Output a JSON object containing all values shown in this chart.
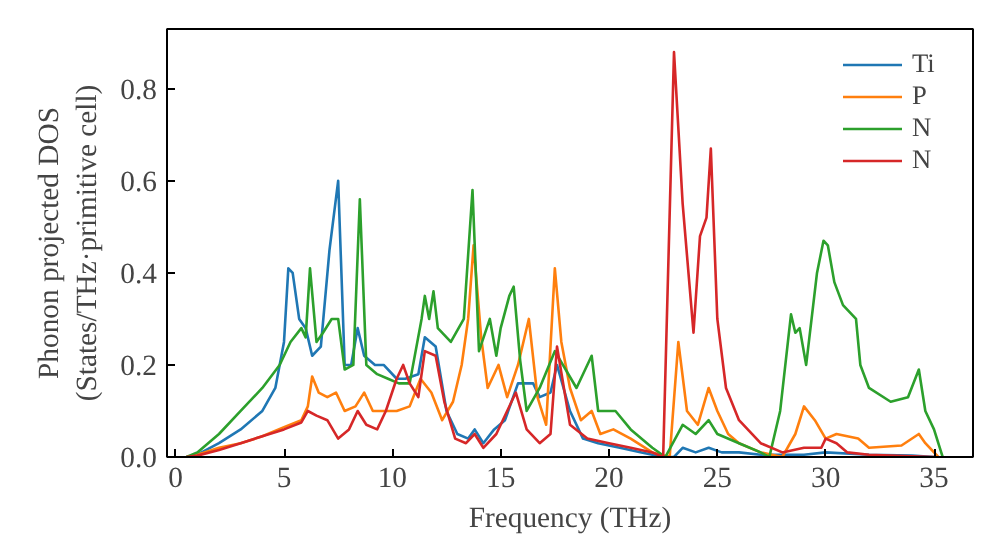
{
  "chart_data": {
    "type": "line",
    "xlabel": "Frequency (THz)",
    "ylabel": "Phonon projected DOS\n(States/THz·primitive cell)",
    "xlim": [
      -0.4,
      36.8
    ],
    "ylim": [
      0,
      0.93
    ],
    "xticks": [
      0,
      5,
      10,
      15,
      20,
      25,
      30,
      35
    ],
    "yticks": [
      {
        "value": 0,
        "label": "0.0"
      },
      {
        "value": 0.2,
        "label": "0.2"
      },
      {
        "value": 0.4,
        "label": "0.4"
      },
      {
        "value": 0.6,
        "label": "0.6"
      },
      {
        "value": 0.8,
        "label": "0.8"
      }
    ],
    "legend": "top right",
    "grid": false,
    "series": [
      {
        "name": "Ti",
        "color": "#1f77b4",
        "x": [
          0.5,
          1,
          2,
          3,
          4,
          4.6,
          5.0,
          5.2,
          5.4,
          5.7,
          6.0,
          6.3,
          6.7,
          7.1,
          7.5,
          7.8,
          8.1,
          8.4,
          8.7,
          9.2,
          9.6,
          10.2,
          10.6,
          11.2,
          11.5,
          12,
          12.5,
          13,
          13.5,
          13.8,
          14.2,
          14.7,
          15.2,
          15.8,
          16.5,
          16.8,
          17.3,
          17.6,
          18.2,
          18.8,
          19.5,
          20.5,
          21.5,
          22.5,
          23,
          23.4,
          24,
          24.6,
          25.2,
          26,
          27,
          29,
          30,
          32,
          34,
          35
        ],
        "values": [
          0,
          0.005,
          0.03,
          0.06,
          0.1,
          0.15,
          0.25,
          0.41,
          0.4,
          0.3,
          0.28,
          0.22,
          0.24,
          0.45,
          0.6,
          0.2,
          0.2,
          0.28,
          0.22,
          0.2,
          0.2,
          0.17,
          0.17,
          0.18,
          0.26,
          0.24,
          0.1,
          0.05,
          0.04,
          0.06,
          0.03,
          0.06,
          0.08,
          0.16,
          0.16,
          0.13,
          0.14,
          0.2,
          0.1,
          0.04,
          0.03,
          0.02,
          0.01,
          0,
          0,
          0.02,
          0.01,
          0.02,
          0.01,
          0.01,
          0.005,
          0.005,
          0.01,
          0.005,
          0.003,
          0
        ]
      },
      {
        "name": "P",
        "color": "#ff7f0e",
        "x": [
          0.5,
          1,
          2,
          3,
          4,
          5,
          5.8,
          6.1,
          6.3,
          6.6,
          7,
          7.4,
          7.8,
          8.3,
          8.7,
          9.1,
          9.6,
          10.2,
          10.8,
          11.3,
          11.8,
          12.3,
          12.8,
          13.2,
          13.5,
          13.75,
          14.1,
          14.4,
          14.9,
          15.3,
          15.8,
          16.3,
          16.7,
          17.1,
          17.5,
          17.8,
          18.2,
          18.7,
          19.2,
          19.6,
          20.2,
          21,
          22,
          22.8,
          23.2,
          23.6,
          24.1,
          24.6,
          25,
          25.5,
          26,
          27,
          28,
          28.6,
          29,
          29.5,
          30,
          30.5,
          31.5,
          32,
          33.5,
          34.3,
          34.6,
          35.2
        ],
        "values": [
          0,
          0.005,
          0.02,
          0.03,
          0.045,
          0.065,
          0.08,
          0.11,
          0.175,
          0.14,
          0.13,
          0.14,
          0.1,
          0.11,
          0.14,
          0.1,
          0.1,
          0.1,
          0.11,
          0.17,
          0.14,
          0.08,
          0.12,
          0.2,
          0.3,
          0.46,
          0.26,
          0.15,
          0.2,
          0.13,
          0.2,
          0.3,
          0.13,
          0.07,
          0.41,
          0.25,
          0.15,
          0.08,
          0.1,
          0.05,
          0.06,
          0.04,
          0.01,
          0,
          0.25,
          0.1,
          0.07,
          0.15,
          0.1,
          0.05,
          0.03,
          0.01,
          0,
          0.05,
          0.11,
          0.08,
          0.04,
          0.05,
          0.04,
          0.02,
          0.025,
          0.05,
          0.03,
          0
        ]
      },
      {
        "name": "N",
        "color": "#2ca02c",
        "x": [
          0.5,
          1,
          2,
          3,
          4,
          4.8,
          5.3,
          5.8,
          6.0,
          6.2,
          6.5,
          6.8,
          7.2,
          7.5,
          7.8,
          8.2,
          8.5,
          8.8,
          9.3,
          9.8,
          10.3,
          10.8,
          11.35,
          11.5,
          11.7,
          11.9,
          12.1,
          12.7,
          13.3,
          13.7,
          14.0,
          14.5,
          14.8,
          15.0,
          15.4,
          15.6,
          15.9,
          16.2,
          16.8,
          17.5,
          18.5,
          19.2,
          19.5,
          20.3,
          21,
          22,
          22.6,
          23.4,
          24,
          24.6,
          25,
          26,
          27,
          27.4,
          27.9,
          28.4,
          28.6,
          28.8,
          29.1,
          29.6,
          29.9,
          30.1,
          30.4,
          30.8,
          31.4,
          31.6,
          32,
          33,
          33.8,
          34.3,
          34.6,
          35,
          35.4
        ],
        "values": [
          0,
          0.01,
          0.05,
          0.1,
          0.15,
          0.2,
          0.25,
          0.28,
          0.26,
          0.41,
          0.25,
          0.27,
          0.3,
          0.3,
          0.19,
          0.2,
          0.56,
          0.2,
          0.18,
          0.17,
          0.16,
          0.16,
          0.3,
          0.35,
          0.3,
          0.36,
          0.28,
          0.25,
          0.3,
          0.58,
          0.23,
          0.3,
          0.22,
          0.28,
          0.35,
          0.37,
          0.21,
          0.1,
          0.15,
          0.23,
          0.15,
          0.22,
          0.1,
          0.1,
          0.06,
          0.02,
          0,
          0.07,
          0.05,
          0.08,
          0.05,
          0.03,
          0.01,
          0,
          0.1,
          0.31,
          0.27,
          0.28,
          0.2,
          0.4,
          0.47,
          0.46,
          0.38,
          0.33,
          0.3,
          0.2,
          0.15,
          0.12,
          0.13,
          0.19,
          0.1,
          0.06,
          0
        ]
      },
      {
        "name": "N",
        "color": "#d62728",
        "x": [
          0.5,
          1,
          2,
          3,
          4,
          5,
          5.8,
          6.1,
          6.5,
          7,
          7.5,
          8,
          8.4,
          8.8,
          9.3,
          9.7,
          10.2,
          10.5,
          10.8,
          11.2,
          11.5,
          12,
          12.4,
          12.9,
          13.4,
          13.8,
          14.2,
          14.8,
          15.3,
          15.7,
          16.2,
          16.8,
          17.3,
          17.6,
          18.2,
          19,
          20,
          21,
          22,
          22.5,
          23.0,
          23.4,
          23.9,
          24.2,
          24.5,
          24.7,
          25,
          25.4,
          26,
          27,
          28,
          29,
          29.8,
          30,
          30.5,
          31,
          32,
          35
        ],
        "values": [
          0,
          0.003,
          0.015,
          0.03,
          0.045,
          0.06,
          0.075,
          0.1,
          0.09,
          0.08,
          0.04,
          0.06,
          0.1,
          0.07,
          0.06,
          0.1,
          0.17,
          0.2,
          0.16,
          0.13,
          0.23,
          0.22,
          0.12,
          0.04,
          0.03,
          0.05,
          0.02,
          0.05,
          0.1,
          0.14,
          0.06,
          0.03,
          0.05,
          0.24,
          0.07,
          0.04,
          0.03,
          0.02,
          0.01,
          0,
          0.88,
          0.55,
          0.27,
          0.48,
          0.52,
          0.67,
          0.3,
          0.15,
          0.08,
          0.03,
          0.01,
          0.02,
          0.02,
          0.04,
          0.03,
          0.01,
          0.005,
          0
        ]
      }
    ]
  }
}
